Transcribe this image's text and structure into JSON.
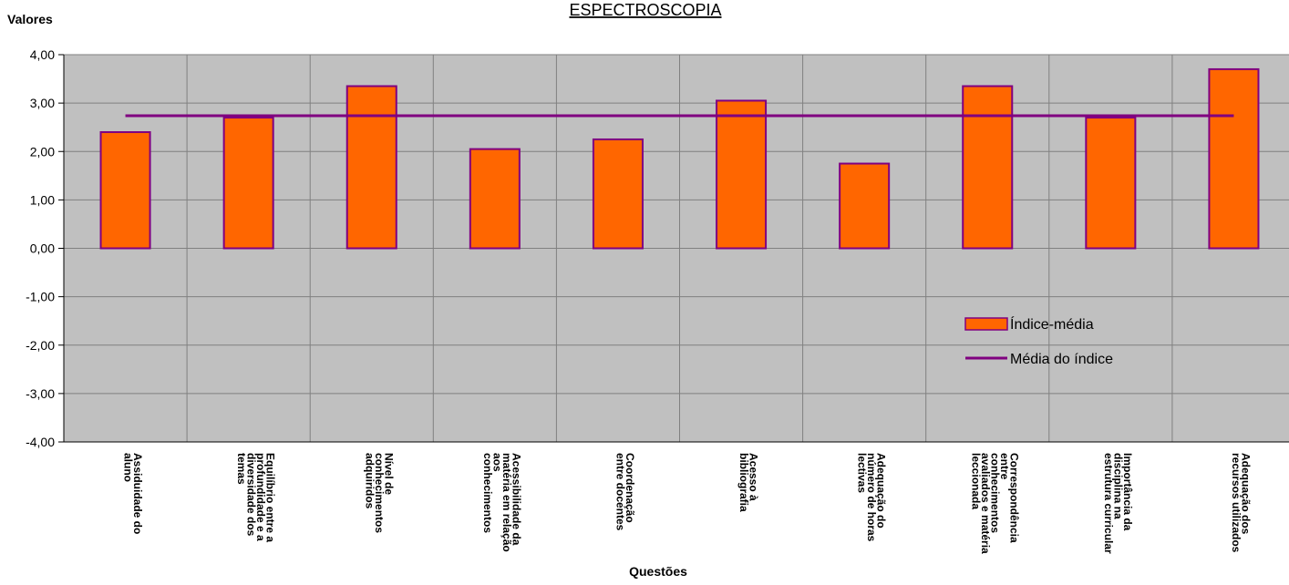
{
  "chart_data": {
    "type": "bar",
    "title": "ESPECTROSCOPIA",
    "ylabel": "Valores",
    "xlabel": "Questões",
    "ylim": [
      -4,
      4
    ],
    "yticks": [
      "-4,00",
      "-3,00",
      "-2,00",
      "-1,00",
      "0,00",
      "1,00",
      "2,00",
      "3,00",
      "4,00"
    ],
    "yticks_values": [
      -4,
      -3,
      -2,
      -1,
      0,
      1,
      2,
      3,
      4
    ],
    "categories": [
      [
        "Assiduidade do",
        "aluno"
      ],
      [
        "Equilíbrio entre a",
        "profundidade e a",
        "diversidade dos",
        "temas"
      ],
      [
        "Nível de",
        "conhecimentos",
        "adquiridos"
      ],
      [
        "Acessibilidade da",
        "matéria em relação",
        "aos",
        "conhecimentos"
      ],
      [
        "Coordenação",
        "entre docentes"
      ],
      [
        "Acesso à",
        "bibliografia"
      ],
      [
        "Adequação do",
        "número de horas",
        "lectivas"
      ],
      [
        "Correspondência",
        "entre",
        "conhecimentos",
        "avaliados e matéria",
        "leccionada"
      ],
      [
        "Importância da",
        "disciplina na",
        "estrutura curricular"
      ],
      [
        "Adequação dos",
        "recursos utilizados"
      ]
    ],
    "series": [
      {
        "name": "Índice-média",
        "kind": "bar",
        "values": [
          2.4,
          2.7,
          3.35,
          2.05,
          2.25,
          3.05,
          1.75,
          3.35,
          2.7,
          3.7
        ]
      },
      {
        "name": "Média do índice",
        "kind": "line",
        "values": [
          2.74,
          2.74,
          2.74,
          2.74,
          2.74,
          2.74,
          2.74,
          2.74,
          2.74,
          2.74
        ]
      }
    ],
    "grid": true,
    "legend_position": "right",
    "colors": {
      "plot_background": "#c0c0c0",
      "bar_fill": "#ff6600",
      "bar_stroke": "#800080",
      "line": "#800080",
      "grid": "#808080"
    }
  }
}
